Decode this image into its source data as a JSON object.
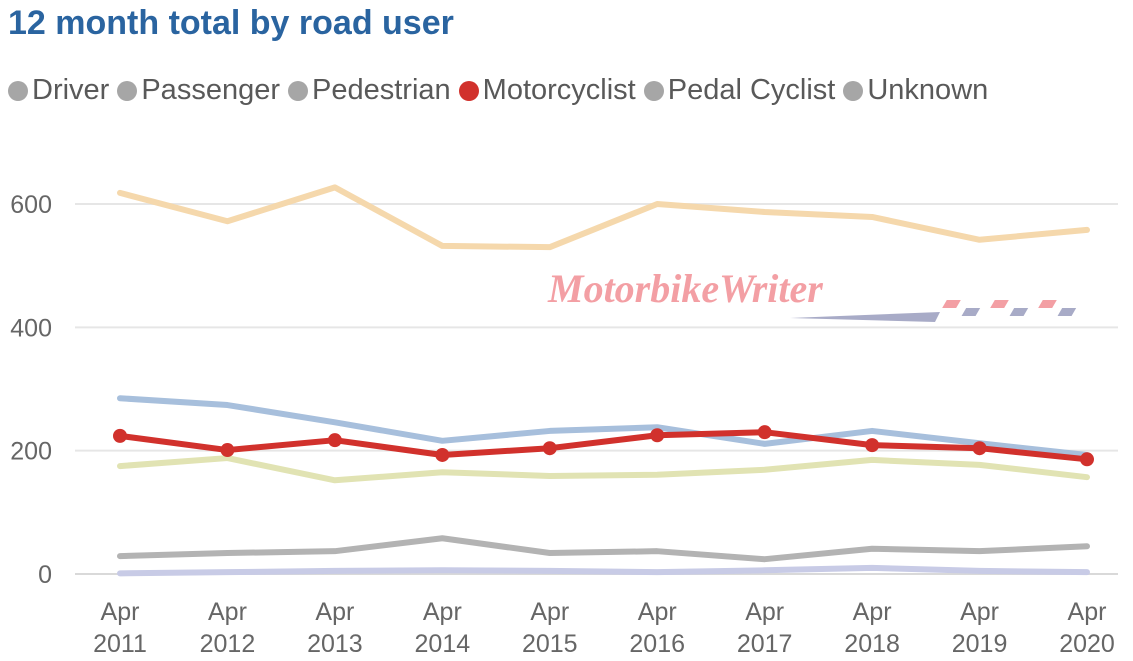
{
  "chart_data": {
    "type": "line",
    "title": "12 month total by road user",
    "categories": [
      [
        "Apr",
        "2011"
      ],
      [
        "Apr",
        "2012"
      ],
      [
        "Apr",
        "2013"
      ],
      [
        "Apr",
        "2014"
      ],
      [
        "Apr",
        "2015"
      ],
      [
        "Apr",
        "2016"
      ],
      [
        "Apr",
        "2017"
      ],
      [
        "Apr",
        "2018"
      ],
      [
        "Apr",
        "2019"
      ],
      [
        "Apr",
        "2020"
      ]
    ],
    "ylim": [
      0,
      650
    ],
    "yticks": [
      0,
      200,
      400,
      600
    ],
    "grid": true,
    "legend_position": "top",
    "series": [
      {
        "name": "Driver",
        "color": "#f5d8ac",
        "legend_color": "#a6a6a6",
        "values": [
          618,
          572,
          627,
          532,
          530,
          600,
          587,
          579,
          542,
          558
        ]
      },
      {
        "name": "Passenger",
        "color": "#a7bfdc",
        "legend_color": "#a6a6a6",
        "values": [
          285,
          274,
          246,
          216,
          232,
          238,
          211,
          232,
          212,
          193
        ]
      },
      {
        "name": "Pedestrian",
        "color": "#e1e3b3",
        "legend_color": "#a6a6a6",
        "values": [
          175,
          188,
          152,
          165,
          159,
          161,
          169,
          185,
          177,
          157
        ]
      },
      {
        "name": "Motorcyclist",
        "color": "#d1312c",
        "legend_color": "#d1312c",
        "values": [
          224,
          201,
          217,
          193,
          204,
          225,
          230,
          209,
          204,
          186
        ]
      },
      {
        "name": "Pedal Cyclist",
        "color": "#b3b3b3",
        "legend_color": "#a6a6a6",
        "values": [
          29,
          34,
          37,
          58,
          34,
          37,
          24,
          41,
          37,
          45
        ]
      },
      {
        "name": "Unknown",
        "color": "#c8cbe6",
        "legend_color": "#a6a6a6",
        "values": [
          1,
          3,
          5,
          6,
          5,
          3,
          6,
          10,
          5,
          3
        ]
      }
    ]
  },
  "watermark": "MotorbikeWriter"
}
